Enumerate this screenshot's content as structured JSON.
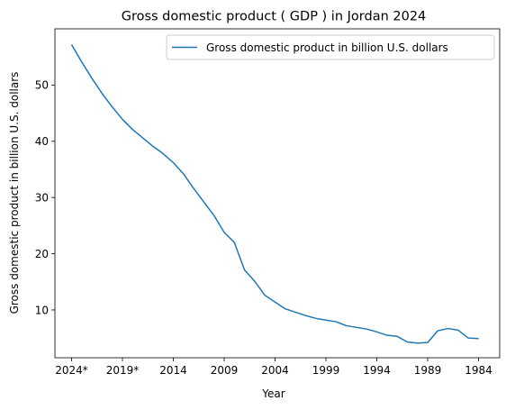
{
  "chart_data": {
    "type": "line",
    "title": "Gross domestic product ( GDP ) in Jordan 2024",
    "xlabel": "Year",
    "ylabel": "Gross domestic product in billion U.S. dollars",
    "x_ticks": [
      "2024*",
      "2019*",
      "2014",
      "2009",
      "2004",
      "1999",
      "1994",
      "1989",
      "1984"
    ],
    "y_ticks": [
      10,
      20,
      30,
      40,
      50
    ],
    "ylim": [
      1.5,
      60
    ],
    "legend_position": "top-right",
    "grid": false,
    "series": [
      {
        "name": "Gross domestic product in billion U.S. dollars",
        "color": "#1f77b4",
        "x": [
          "2024*",
          "2023*",
          "2022*",
          "2021*",
          "2020*",
          "2019*",
          "2018*",
          "2017*",
          "2016*",
          "2015",
          "2014",
          "2013",
          "2012",
          "2011",
          "2010",
          "2009",
          "2008",
          "2007",
          "2006",
          "2005",
          "2004",
          "2003",
          "2002",
          "2001",
          "2000",
          "1999",
          "1998",
          "1997",
          "1996",
          "1995",
          "1994",
          "1993",
          "1992",
          "1991",
          "1990",
          "1989",
          "1988",
          "1987",
          "1986",
          "1985",
          "1984"
        ],
        "values": [
          57.2,
          54.1,
          51.2,
          48.5,
          46.1,
          43.9,
          42.1,
          40.6,
          39.1,
          37.8,
          36.2,
          34.2,
          31.6,
          29.2,
          26.8,
          23.8,
          22.0,
          17.1,
          15.1,
          12.6,
          11.4,
          10.2,
          9.6,
          9.0,
          8.5,
          8.2,
          7.9,
          7.2,
          6.9,
          6.6,
          6.1,
          5.5,
          5.3,
          4.3,
          4.1,
          4.2,
          6.3,
          6.7,
          6.4,
          5.0,
          4.9
        ]
      }
    ]
  }
}
